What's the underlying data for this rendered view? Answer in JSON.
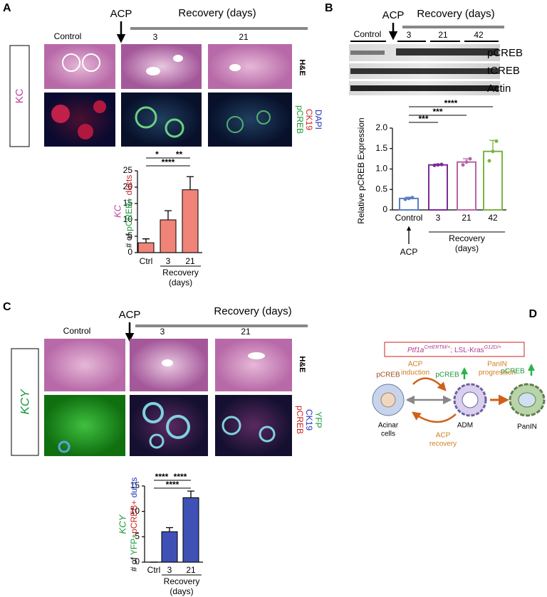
{
  "figure": {
    "panel_a": {
      "label": "A",
      "treatment": "ACP",
      "recovery": "Recovery (days)",
      "columns": [
        "Control",
        "3",
        "21"
      ],
      "genotype": "KC",
      "stain_he": "H&E",
      "stains": [
        "DAPI",
        "CK19",
        "pCREB"
      ]
    },
    "panel_b": {
      "label": "B",
      "treatment": "ACP",
      "recovery": "Recovery (days)",
      "columns": [
        "Control",
        "3",
        "21",
        "42"
      ],
      "blots": [
        "pCREB",
        "tCREB",
        "Actin"
      ]
    },
    "panel_c": {
      "label": "C",
      "treatment": "ACP",
      "recovery": "Recovery (days)",
      "columns": [
        "Control",
        "3",
        "21"
      ],
      "genotype": "KCY",
      "stain_he": "H&E",
      "stains": [
        "YFP",
        "CK19",
        "pCREB"
      ]
    },
    "panel_d": {
      "label": "D",
      "genotype_parts": [
        "Ptf1a",
        "CreERTM/+",
        "; LSL-Kras",
        "G12D/+"
      ],
      "marker_acinar": "pCREB",
      "marker_adm": "pCREB",
      "marker_panin": "pCREB",
      "induction": [
        "ACP",
        "induction"
      ],
      "recovery": [
        "ACP",
        "recovery"
      ],
      "progression": [
        "PanIN",
        "progression"
      ],
      "acinar": [
        "Acinar",
        "cells"
      ],
      "adm": "ADM",
      "panin": "PanIN"
    }
  },
  "chart_data": [
    {
      "type": "bar",
      "ylabel_parts": [
        "KC",
        "# of ",
        "pCREB+",
        " ducts"
      ],
      "ylabel_colors": [
        "#c040a0",
        "#000000",
        "#1a9a3a",
        "#d02020"
      ],
      "categories": [
        "Ctrl",
        "3",
        "21"
      ],
      "values": [
        3,
        10,
        19.2
      ],
      "errors": [
        1.2,
        2.8,
        4.0
      ],
      "color": "#f08478",
      "ylim": [
        0,
        25
      ],
      "yticks": [
        0,
        5,
        10,
        15,
        20,
        25
      ],
      "group_label": [
        "Recovery",
        "(days)"
      ],
      "significance": [
        {
          "from": 0,
          "to": 1,
          "label": "*"
        },
        {
          "from": 1,
          "to": 2,
          "label": "**"
        },
        {
          "from": 0,
          "to": 2,
          "label": "****"
        }
      ]
    },
    {
      "type": "bar",
      "style": "hollow",
      "ylabel": "Relative pCREB Expression",
      "categories": [
        "Control",
        "3",
        "21",
        "42"
      ],
      "values": [
        0.28,
        1.1,
        1.17,
        1.43
      ],
      "errors": [
        0.03,
        0.02,
        0.08,
        0.27
      ],
      "points": [
        [
          0.26,
          0.28,
          0.3
        ],
        [
          1.09,
          1.1,
          1.11
        ],
        [
          1.1,
          1.17,
          1.25
        ],
        [
          1.2,
          1.43,
          1.68
        ]
      ],
      "colors": [
        "#5b7fc0",
        "#7a2c96",
        "#b565a7",
        "#7cb342"
      ],
      "ylim": [
        0,
        2
      ],
      "yticks": [
        0,
        0.5,
        {
          "value": 1,
          "label": "1.0"
        },
        1.5,
        {
          "value": 2,
          "label": "2.0"
        }
      ],
      "treatment_label": "ACP",
      "group_label": [
        "Recovery",
        "(days)"
      ],
      "significance": [
        {
          "from": 0,
          "to": 1,
          "label": "***"
        },
        {
          "from": 0,
          "to": 2,
          "label": "***"
        },
        {
          "from": 0,
          "to": 3,
          "label": "****"
        }
      ]
    },
    {
      "type": "bar",
      "ylabel_parts": [
        "KCY",
        "# of ",
        "YFP+",
        "pCREB+",
        " ducts"
      ],
      "ylabel_colors": [
        "#1a9a3a",
        "#000000",
        "#1a9a3a",
        "#d02020",
        "#2030c0"
      ],
      "categories": [
        "Ctrl",
        "3",
        "21"
      ],
      "values": [
        0,
        6,
        12.7
      ],
      "errors": [
        0,
        0.8,
        1.3
      ],
      "color": "#3f51b5",
      "ylim": [
        0,
        15
      ],
      "yticks": [
        0,
        5,
        10,
        15
      ],
      "group_label": [
        "Recovery",
        "(days)"
      ],
      "significance": [
        {
          "from": 0,
          "to": 1,
          "label": "****"
        },
        {
          "from": 1,
          "to": 2,
          "label": "****"
        },
        {
          "from": 0,
          "to": 2,
          "label": "****"
        }
      ]
    }
  ]
}
